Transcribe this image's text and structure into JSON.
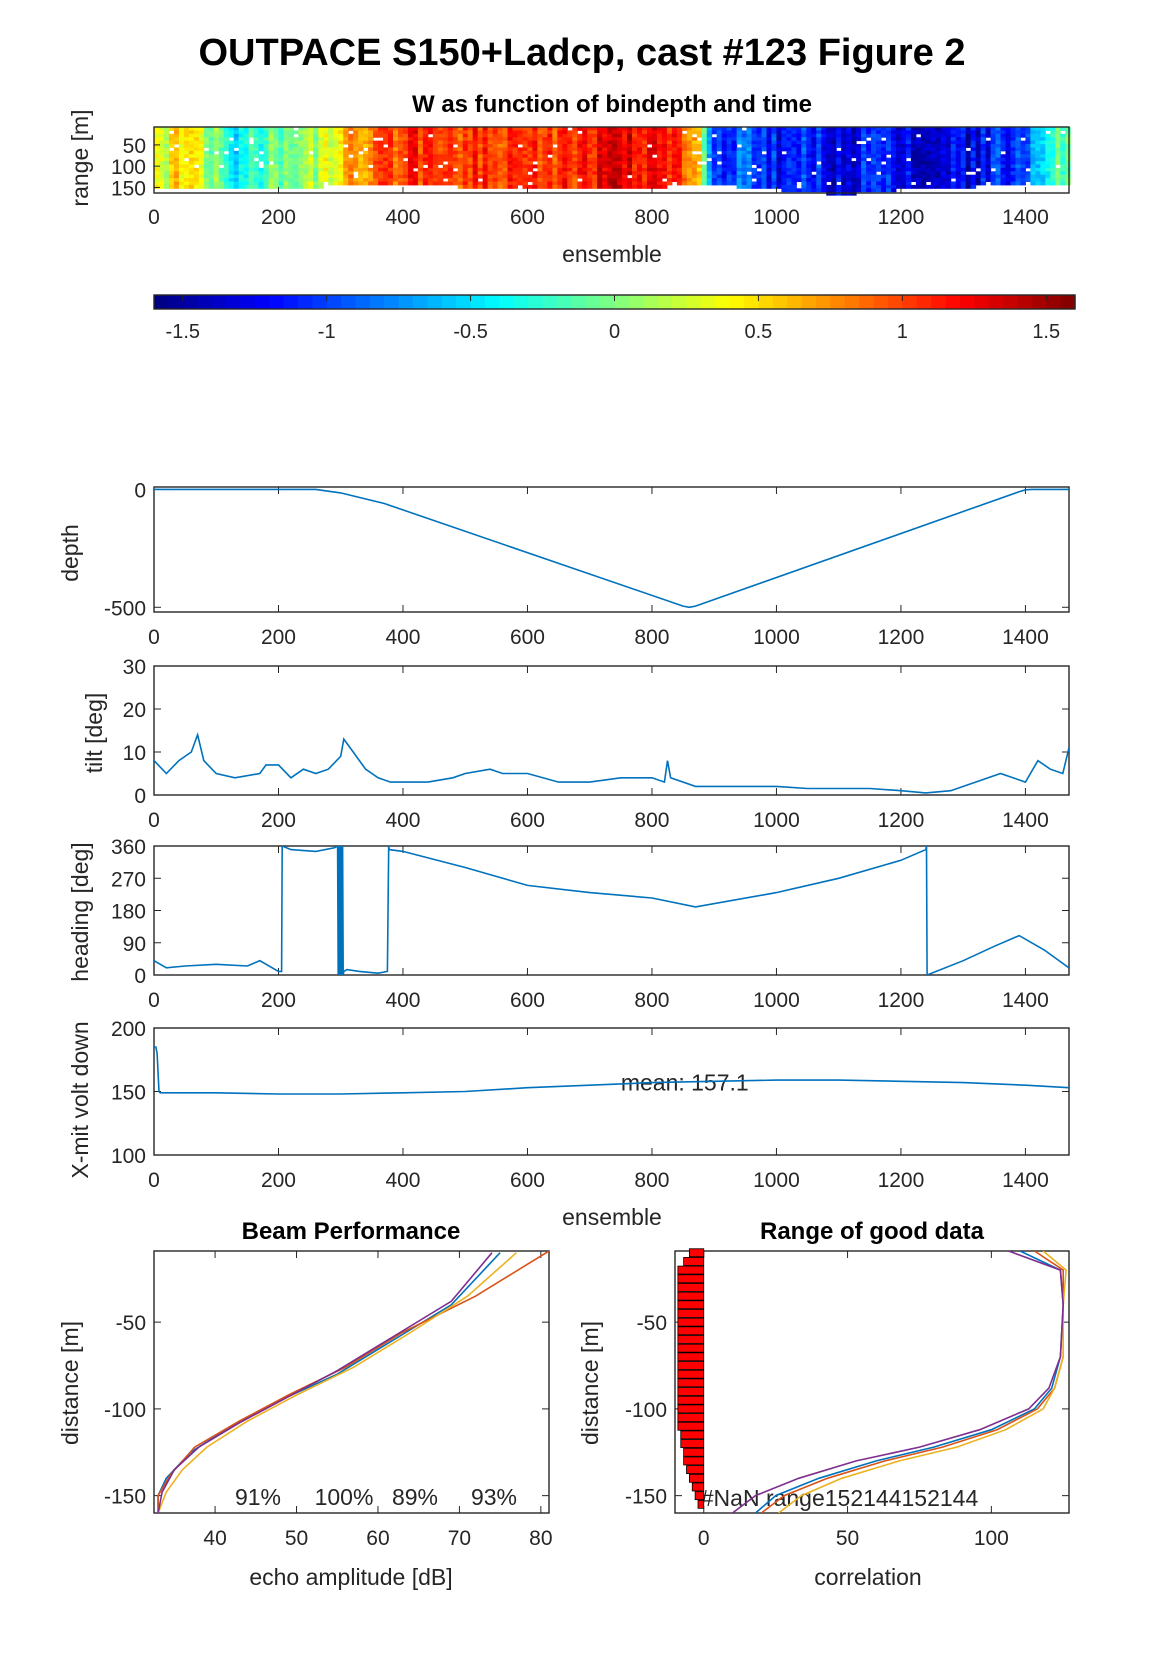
{
  "figure": {
    "title": "OUTPACE S150+Ladcp, cast #123 Figure 2"
  },
  "chart_data": [
    {
      "id": "w_image",
      "type": "heatmap",
      "title": "W as function of bindepth and time",
      "xlabel": "ensemble",
      "ylabel": "range [m]",
      "xlim": [
        0,
        1470
      ],
      "ylim": [
        163,
        8
      ],
      "xticks": [
        "0",
        "200",
        "400",
        "600",
        "800",
        "1000",
        "1200",
        "1400"
      ],
      "yticks": [
        "50",
        "100",
        "150"
      ],
      "clim": [
        -1.6,
        1.6
      ],
      "colorbar_ticks": [
        "-1.5",
        "-1",
        "-0.5",
        "0",
        "0.5",
        "1",
        "1.5"
      ],
      "colormap": "jet",
      "column_w_profile": [
        {
          "x": 0,
          "w": 0.3
        },
        {
          "x": 50,
          "w": 0.5
        },
        {
          "x": 90,
          "w": 0.0
        },
        {
          "x": 130,
          "w": -0.4
        },
        {
          "x": 200,
          "w": 0.0
        },
        {
          "x": 260,
          "w": 0.2
        },
        {
          "x": 300,
          "w": 0.5
        },
        {
          "x": 340,
          "w": 0.8
        },
        {
          "x": 380,
          "w": 1.0
        },
        {
          "x": 420,
          "w": 1.1
        },
        {
          "x": 450,
          "w": 1.0
        },
        {
          "x": 500,
          "w": 0.95
        },
        {
          "x": 560,
          "w": 1.1
        },
        {
          "x": 620,
          "w": 1.0
        },
        {
          "x": 680,
          "w": 1.05
        },
        {
          "x": 730,
          "w": 1.2
        },
        {
          "x": 780,
          "w": 1.15
        },
        {
          "x": 830,
          "w": 1.0
        },
        {
          "x": 870,
          "w": 0.8
        },
        {
          "x": 890,
          "w": -1.0
        },
        {
          "x": 950,
          "w": -0.95
        },
        {
          "x": 1000,
          "w": -1.2
        },
        {
          "x": 1050,
          "w": -1.0
        },
        {
          "x": 1100,
          "w": -1.3
        },
        {
          "x": 1150,
          "w": -1.1
        },
        {
          "x": 1200,
          "w": -1.3
        },
        {
          "x": 1260,
          "w": -1.25
        },
        {
          "x": 1310,
          "w": -1.3
        },
        {
          "x": 1360,
          "w": -1.1
        },
        {
          "x": 1400,
          "w": -0.9
        },
        {
          "x": 1420,
          "w": -0.4
        },
        {
          "x": 1450,
          "w": -0.1
        },
        {
          "x": 1470,
          "w": 0.1
        }
      ],
      "bottom_range_profile": [
        {
          "x": 0,
          "r": 145
        },
        {
          "x": 260,
          "r": 145
        },
        {
          "x": 300,
          "r": 140
        },
        {
          "x": 400,
          "r": 140
        },
        {
          "x": 500,
          "r": 145
        },
        {
          "x": 600,
          "r": 152
        },
        {
          "x": 700,
          "r": 152
        },
        {
          "x": 800,
          "r": 145
        },
        {
          "x": 900,
          "r": 140
        },
        {
          "x": 1000,
          "r": 152
        },
        {
          "x": 1100,
          "r": 163
        },
        {
          "x": 1200,
          "r": 150
        },
        {
          "x": 1300,
          "r": 145
        },
        {
          "x": 1400,
          "r": 140
        },
        {
          "x": 1470,
          "r": 140
        }
      ]
    },
    {
      "id": "depth",
      "type": "line",
      "title": "",
      "xlabel": "",
      "ylabel": "depth",
      "xlim": [
        0,
        1470
      ],
      "ylim": [
        -520,
        10
      ],
      "xticks": [
        "0",
        "200",
        "400",
        "600",
        "800",
        "1000",
        "1200",
        "1400"
      ],
      "yticks": [
        "-500",
        "0"
      ],
      "color": "#0072BD",
      "x": [
        0,
        260,
        300,
        370,
        850,
        860,
        870,
        1390,
        1400,
        1410,
        1470
      ],
      "y": [
        0,
        0,
        -15,
        -60,
        -495,
        -500,
        -495,
        -10,
        -2,
        0,
        0
      ]
    },
    {
      "id": "tilt",
      "type": "line",
      "title": "",
      "xlabel": "",
      "ylabel": "tilt [deg]",
      "xlim": [
        0,
        1470
      ],
      "ylim": [
        0,
        30
      ],
      "xticks": [
        "0",
        "200",
        "400",
        "600",
        "800",
        "1000",
        "1200",
        "1400"
      ],
      "yticks": [
        "0",
        "10",
        "20",
        "30"
      ],
      "color": "#0072BD",
      "x": [
        0,
        20,
        40,
        60,
        70,
        80,
        100,
        130,
        170,
        180,
        200,
        220,
        240,
        260,
        280,
        300,
        305,
        320,
        340,
        360,
        380,
        400,
        440,
        480,
        500,
        540,
        560,
        600,
        650,
        700,
        750,
        800,
        820,
        825,
        830,
        870,
        900,
        950,
        1000,
        1050,
        1100,
        1150,
        1200,
        1240,
        1280,
        1320,
        1360,
        1380,
        1400,
        1420,
        1440,
        1460,
        1470
      ],
      "y": [
        8,
        5,
        8,
        10,
        14,
        8,
        5,
        4,
        5,
        7,
        7,
        4,
        6,
        5,
        6,
        9,
        13,
        10,
        6,
        4,
        3,
        3,
        3,
        4,
        5,
        6,
        5,
        5,
        3,
        3,
        4,
        4,
        3,
        8,
        4,
        2,
        2,
        2,
        2,
        1.5,
        1.5,
        1.5,
        1,
        0.5,
        1,
        3,
        5,
        4,
        3,
        8,
        6,
        5,
        11
      ]
    },
    {
      "id": "heading",
      "type": "line",
      "title": "",
      "xlabel": "",
      "ylabel": "heading [deg]",
      "xlim": [
        0,
        1470
      ],
      "ylim": [
        0,
        360
      ],
      "xticks": [
        "0",
        "200",
        "400",
        "600",
        "800",
        "1000",
        "1200",
        "1400"
      ],
      "yticks": [
        "0",
        "90",
        "180",
        "270",
        "360"
      ],
      "color": "#0072BD",
      "x": [
        0,
        20,
        50,
        100,
        150,
        170,
        200,
        205,
        206,
        220,
        260,
        290,
        295,
        296,
        297,
        298,
        299,
        300,
        301,
        302,
        303,
        304,
        305,
        310,
        330,
        360,
        375,
        377,
        378,
        400,
        500,
        600,
        700,
        800,
        870,
        1000,
        1100,
        1200,
        1240,
        1241,
        1242,
        1300,
        1350,
        1390,
        1430,
        1470
      ],
      "y": [
        40,
        20,
        25,
        30,
        25,
        40,
        10,
        10,
        360,
        350,
        345,
        355,
        360,
        0,
        360,
        0,
        360,
        0,
        360,
        0,
        360,
        0,
        10,
        15,
        10,
        5,
        10,
        360,
        350,
        345,
        300,
        250,
        230,
        215,
        190,
        230,
        270,
        320,
        350,
        360,
        0,
        40,
        80,
        110,
        70,
        20
      ]
    },
    {
      "id": "xmit_volt",
      "type": "line",
      "title": "",
      "xlabel": "ensemble",
      "ylabel": "X-mit volt down",
      "xlim": [
        0,
        1470
      ],
      "ylim": [
        100,
        200
      ],
      "xticks": [
        "0",
        "200",
        "400",
        "600",
        "800",
        "1000",
        "1200",
        "1400"
      ],
      "yticks": [
        "100",
        "150",
        "200"
      ],
      "color": "#0072BD",
      "annotation": "mean: 157.1",
      "annotation_at": [
        750,
        157
      ],
      "x": [
        0,
        3,
        5,
        8,
        10,
        100,
        200,
        300,
        400,
        500,
        600,
        700,
        800,
        900,
        1000,
        1100,
        1200,
        1300,
        1400,
        1470
      ],
      "y": [
        185,
        185,
        180,
        150,
        149,
        149,
        148,
        148,
        149,
        150,
        153,
        155,
        157,
        158,
        159,
        159,
        158,
        157,
        155,
        153
      ]
    },
    {
      "id": "beam_performance",
      "type": "line",
      "title": "Beam Performance",
      "xlabel": "echo amplitude [dB]",
      "ylabel": "distance [m]",
      "xlim": [
        32.5,
        81
      ],
      "ylim": [
        -160,
        -9
      ],
      "xticks": [
        "40",
        "50",
        "60",
        "70",
        "80"
      ],
      "yticks": [
        "-150",
        "-100",
        "-50"
      ],
      "percent_labels": [
        "91%",
        "100%",
        "89%",
        "93%"
      ],
      "series": [
        {
          "color": "#0072BD",
          "x": [
            33,
            33,
            34,
            37,
            42,
            48,
            55,
            62,
            69,
            75
          ],
          "y": [
            -160,
            -150,
            -140,
            -125,
            -110,
            -95,
            -80,
            -60,
            -40,
            -10
          ]
        },
        {
          "color": "#D95319",
          "x": [
            33,
            33,
            34.5,
            37.5,
            43,
            49,
            56,
            63,
            72,
            81
          ],
          "y": [
            -160,
            -150,
            -138,
            -122,
            -107,
            -92,
            -76,
            -56,
            -35,
            -9
          ]
        },
        {
          "color": "#EDB120",
          "x": [
            33,
            34,
            36,
            39,
            44,
            50,
            57,
            64,
            71,
            77
          ],
          "y": [
            -160,
            -148,
            -135,
            -122,
            -107,
            -92,
            -76,
            -56,
            -35,
            -10
          ]
        },
        {
          "color": "#7E2F8E",
          "x": [
            33,
            33.5,
            35,
            38,
            43,
            49,
            55,
            62,
            69,
            74
          ],
          "y": [
            -160,
            -148,
            -135,
            -122,
            -108,
            -93,
            -78,
            -58,
            -38,
            -10
          ]
        }
      ]
    },
    {
      "id": "range_good_data",
      "type": "bar",
      "title": "Range of good data",
      "xlabel": "correlation",
      "ylabel": "distance [m]",
      "xlim": [
        -10,
        127
      ],
      "ylim": [
        -160,
        -9
      ],
      "xticks": [
        "0",
        "50",
        "100"
      ],
      "yticks": [
        "-150",
        "-100",
        "-50"
      ],
      "annotation": "#NaN range152144152144",
      "bar_color": "#FF0000",
      "bar_edge": "#000000",
      "bars": [
        {
          "y": -10,
          "w": 5
        },
        {
          "y": -15,
          "w": 7
        },
        {
          "y": -20,
          "w": 9
        },
        {
          "y": -25,
          "w": 9
        },
        {
          "y": -30,
          "w": 9
        },
        {
          "y": -35,
          "w": 9
        },
        {
          "y": -40,
          "w": 9
        },
        {
          "y": -45,
          "w": 9
        },
        {
          "y": -50,
          "w": 9
        },
        {
          "y": -55,
          "w": 9
        },
        {
          "y": -60,
          "w": 9
        },
        {
          "y": -65,
          "w": 9
        },
        {
          "y": -70,
          "w": 9
        },
        {
          "y": -75,
          "w": 9
        },
        {
          "y": -80,
          "w": 9
        },
        {
          "y": -85,
          "w": 9
        },
        {
          "y": -90,
          "w": 9
        },
        {
          "y": -95,
          "w": 9
        },
        {
          "y": -100,
          "w": 9
        },
        {
          "y": -105,
          "w": 9
        },
        {
          "y": -110,
          "w": 9
        },
        {
          "y": -115,
          "w": 8
        },
        {
          "y": -120,
          "w": 8
        },
        {
          "y": -125,
          "w": 7
        },
        {
          "y": -130,
          "w": 7
        },
        {
          "y": -135,
          "w": 6
        },
        {
          "y": -140,
          "w": 5
        },
        {
          "y": -145,
          "w": 4
        },
        {
          "y": -150,
          "w": 3
        },
        {
          "y": -155,
          "w": 2
        }
      ],
      "series": [
        {
          "color": "#0072BD",
          "x": [
            18,
            25,
            40,
            60,
            80,
            100,
            115,
            121,
            124,
            125,
            124,
            110
          ],
          "y": [
            -160,
            -150,
            -140,
            -130,
            -122,
            -112,
            -100,
            -88,
            -70,
            -40,
            -20,
            -9
          ]
        },
        {
          "color": "#D95319",
          "x": [
            20,
            28,
            43,
            63,
            83,
            102,
            116,
            122,
            125,
            125,
            125,
            115
          ],
          "y": [
            -160,
            -150,
            -140,
            -130,
            -122,
            -112,
            -100,
            -88,
            -70,
            -40,
            -20,
            -9
          ]
        },
        {
          "color": "#EDB120",
          "x": [
            26,
            34,
            48,
            68,
            88,
            105,
            118,
            122,
            125,
            125,
            126,
            118
          ],
          "y": [
            -160,
            -150,
            -140,
            -130,
            -122,
            -112,
            -100,
            -88,
            -70,
            -40,
            -20,
            -9
          ]
        },
        {
          "color": "#7E2F8E",
          "x": [
            10,
            18,
            33,
            53,
            75,
            96,
            113,
            120,
            124,
            125,
            124,
            106
          ],
          "y": [
            -160,
            -150,
            -140,
            -130,
            -122,
            -112,
            -100,
            -88,
            -70,
            -40,
            -20,
            -9
          ]
        }
      ]
    }
  ]
}
